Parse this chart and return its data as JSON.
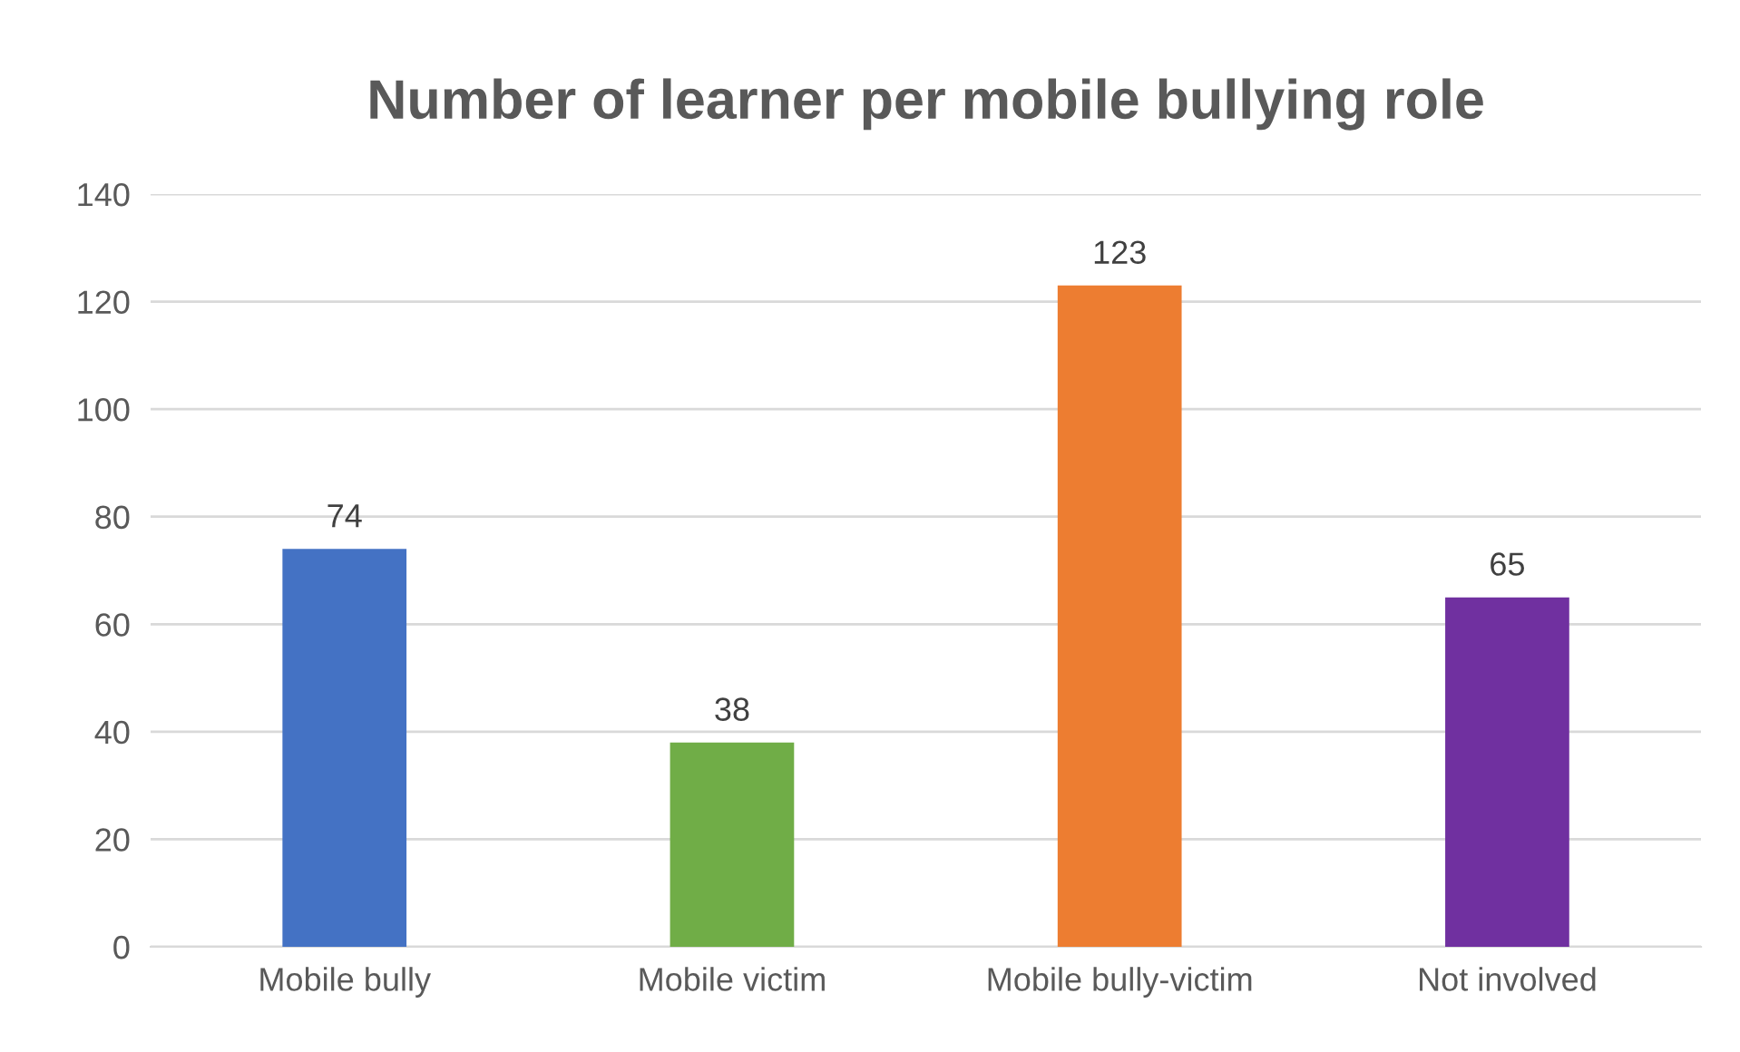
{
  "chart_data": {
    "type": "bar",
    "title": "Number of learner per mobile bullying role",
    "categories": [
      "Mobile bully",
      "Mobile victim",
      "Mobile bully-victim",
      "Not involved"
    ],
    "values": [
      74,
      38,
      123,
      65
    ],
    "colors": [
      "#4472c4",
      "#70ad47",
      "#ed7d31",
      "#7030a0"
    ],
    "ylim": [
      0,
      140
    ],
    "yticks": [
      0,
      20,
      40,
      60,
      80,
      100,
      120,
      140
    ],
    "grid": "y",
    "data_labels": true
  }
}
